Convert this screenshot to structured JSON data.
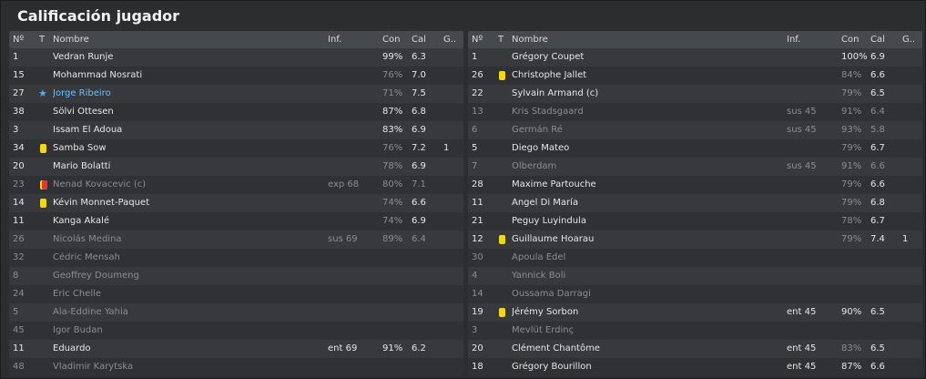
{
  "title": "Calificación jugador",
  "columns": {
    "no": "Nº",
    "t": "T",
    "name": "Nombre",
    "inf": "Inf.",
    "con": "Con",
    "cal": "Cal",
    "g": "G.."
  },
  "home": [
    {
      "no": "1",
      "name": "Vedran Runje",
      "inf": "",
      "con": "99%",
      "cal": "6.3",
      "g": "",
      "icon": "",
      "state": "normal"
    },
    {
      "no": "15",
      "name": "Mohammad Nosrati",
      "inf": "",
      "con": "76%",
      "cal": "7.0",
      "g": "",
      "icon": "",
      "state": "normal",
      "con_dim": true
    },
    {
      "no": "27",
      "name": "Jorge Ribeiro",
      "inf": "",
      "con": "71%",
      "cal": "7.5",
      "g": "",
      "icon": "star",
      "state": "highlight",
      "con_dim": true
    },
    {
      "no": "38",
      "name": "Sölvi Ottesen",
      "inf": "",
      "con": "87%",
      "cal": "6.8",
      "g": "",
      "icon": "",
      "state": "normal"
    },
    {
      "no": "3",
      "name": "Issam El Adoua",
      "inf": "",
      "con": "83%",
      "cal": "6.9",
      "g": "",
      "icon": "",
      "state": "normal"
    },
    {
      "no": "34",
      "name": "Samba Sow",
      "inf": "",
      "con": "76%",
      "cal": "7.2",
      "g": "1",
      "icon": "yellow",
      "state": "normal",
      "con_dim": true
    },
    {
      "no": "20",
      "name": "Mario Bolatti",
      "inf": "",
      "con": "78%",
      "cal": "6.9",
      "g": "",
      "icon": "",
      "state": "normal",
      "con_dim": true
    },
    {
      "no": "23",
      "name": "Nenad Kovacevic (c)",
      "inf": "exp 68",
      "con": "80%",
      "cal": "7.1",
      "g": "",
      "icon": "red",
      "state": "dim"
    },
    {
      "no": "14",
      "name": "Kévin Monnet-Paquet",
      "inf": "",
      "con": "74%",
      "cal": "6.6",
      "g": "",
      "icon": "yellow",
      "state": "normal",
      "con_dim": true
    },
    {
      "no": "11",
      "name": "Kanga Akalé",
      "inf": "",
      "con": "74%",
      "cal": "6.9",
      "g": "",
      "icon": "",
      "state": "normal",
      "con_dim": true
    },
    {
      "no": "26",
      "name": "Nicolás Medina",
      "inf": "sus 69",
      "con": "89%",
      "cal": "6.4",
      "g": "",
      "icon": "",
      "state": "dim"
    },
    {
      "no": "32",
      "name": "Cédric Mensah",
      "inf": "",
      "con": "",
      "cal": "",
      "g": "",
      "icon": "",
      "state": "dim"
    },
    {
      "no": "8",
      "name": "Geoffrey Doumeng",
      "inf": "",
      "con": "",
      "cal": "",
      "g": "",
      "icon": "",
      "state": "dim"
    },
    {
      "no": "24",
      "name": "Eric Chelle",
      "inf": "",
      "con": "",
      "cal": "",
      "g": "",
      "icon": "",
      "state": "dim"
    },
    {
      "no": "5",
      "name": "Ala-Eddine Yahia",
      "inf": "",
      "con": "",
      "cal": "",
      "g": "",
      "icon": "",
      "state": "dim"
    },
    {
      "no": "45",
      "name": "Igor Budan",
      "inf": "",
      "con": "",
      "cal": "",
      "g": "",
      "icon": "",
      "state": "dim"
    },
    {
      "no": "11",
      "name": "Eduardo",
      "inf": "ent 69",
      "con": "91%",
      "cal": "6.2",
      "g": "",
      "icon": "",
      "state": "normal"
    },
    {
      "no": "48",
      "name": "Vladimir Karytska",
      "inf": "",
      "con": "",
      "cal": "",
      "g": "",
      "icon": "",
      "state": "dim"
    }
  ],
  "away": [
    {
      "no": "1",
      "name": "Grégory Coupet",
      "inf": "",
      "con": "100%",
      "cal": "6.9",
      "g": "",
      "icon": "",
      "state": "normal"
    },
    {
      "no": "26",
      "name": "Christophe Jallet",
      "inf": "",
      "con": "84%",
      "cal": "6.6",
      "g": "",
      "icon": "yellow",
      "state": "normal",
      "con_dim": true
    },
    {
      "no": "22",
      "name": "Sylvain Armand (c)",
      "inf": "",
      "con": "79%",
      "cal": "6.5",
      "g": "",
      "icon": "",
      "state": "normal",
      "con_dim": true
    },
    {
      "no": "13",
      "name": "Kris Stadsgaard",
      "inf": "sus 45",
      "con": "91%",
      "cal": "6.4",
      "g": "",
      "icon": "",
      "state": "dim"
    },
    {
      "no": "6",
      "name": "Germán Ré",
      "inf": "sus 45",
      "con": "93%",
      "cal": "5.8",
      "g": "",
      "icon": "",
      "state": "dim"
    },
    {
      "no": "5",
      "name": "Diego Mateo",
      "inf": "",
      "con": "79%",
      "cal": "6.7",
      "g": "",
      "icon": "",
      "state": "normal",
      "con_dim": true
    },
    {
      "no": "7",
      "name": "Olberdam",
      "inf": "sus 45",
      "con": "91%",
      "cal": "6.6",
      "g": "",
      "icon": "",
      "state": "dim"
    },
    {
      "no": "28",
      "name": "Maxime Partouche",
      "inf": "",
      "con": "79%",
      "cal": "6.6",
      "g": "",
      "icon": "",
      "state": "normal",
      "con_dim": true
    },
    {
      "no": "11",
      "name": "Angel Di María",
      "inf": "",
      "con": "79%",
      "cal": "6.8",
      "g": "",
      "icon": "",
      "state": "normal",
      "con_dim": true
    },
    {
      "no": "21",
      "name": "Peguy Luyindula",
      "inf": "",
      "con": "78%",
      "cal": "6.7",
      "g": "",
      "icon": "",
      "state": "normal",
      "con_dim": true
    },
    {
      "no": "12",
      "name": "Guillaume Hoarau",
      "inf": "",
      "con": "79%",
      "cal": "7.4",
      "g": "1",
      "icon": "yellow",
      "state": "normal",
      "con_dim": true
    },
    {
      "no": "30",
      "name": "Apoula Edel",
      "inf": "",
      "con": "",
      "cal": "",
      "g": "",
      "icon": "",
      "state": "dim"
    },
    {
      "no": "4",
      "name": "Yannick Boli",
      "inf": "",
      "con": "",
      "cal": "",
      "g": "",
      "icon": "",
      "state": "dim"
    },
    {
      "no": "14",
      "name": "Oussama Darragi",
      "inf": "",
      "con": "",
      "cal": "",
      "g": "",
      "icon": "",
      "state": "dim"
    },
    {
      "no": "19",
      "name": "Jérémy Sorbon",
      "inf": "ent 45",
      "con": "90%",
      "cal": "6.5",
      "g": "",
      "icon": "yellow",
      "state": "normal"
    },
    {
      "no": "3",
      "name": "Mevlüt Erdinç",
      "inf": "",
      "con": "",
      "cal": "",
      "g": "",
      "icon": "",
      "state": "dim"
    },
    {
      "no": "20",
      "name": "Clément Chantôme",
      "inf": "ent 45",
      "con": "83%",
      "cal": "6.5",
      "g": "",
      "icon": "",
      "state": "normal",
      "con_dim": true
    },
    {
      "no": "18",
      "name": "Grégory Bourillon",
      "inf": "ent 45",
      "con": "87%",
      "cal": "6.6",
      "g": "",
      "icon": "",
      "state": "normal"
    }
  ]
}
